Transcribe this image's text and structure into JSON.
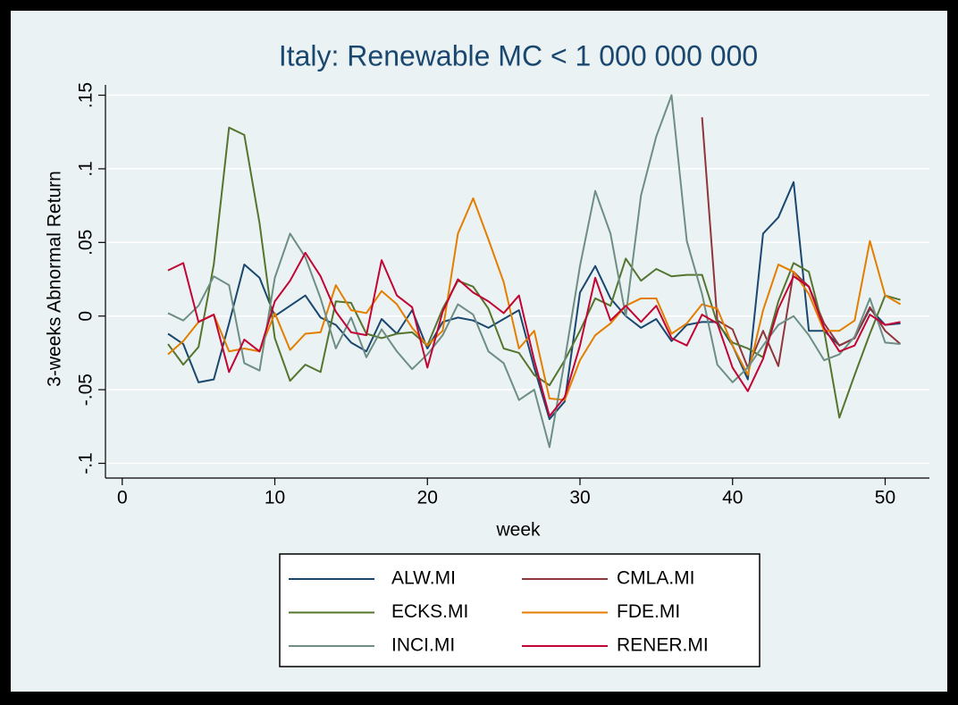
{
  "chart_data": {
    "type": "line",
    "title": "Italy: Renewable MC < 1 000 000 000",
    "x_label": "week",
    "y_label": "3-weeks Abnormal Return",
    "x": [
      3,
      4,
      5,
      6,
      7,
      8,
      9,
      10,
      11,
      12,
      13,
      14,
      15,
      16,
      17,
      18,
      19,
      20,
      21,
      22,
      23,
      24,
      25,
      26,
      27,
      28,
      29,
      30,
      31,
      32,
      33,
      34,
      35,
      36,
      37,
      38,
      39,
      40,
      41,
      42,
      43,
      44,
      45,
      46,
      47,
      48,
      49,
      50,
      51
    ],
    "series": [
      {
        "name": "ALW.MI",
        "color": "#1a476f",
        "values": [
          -0.012,
          -0.019,
          -0.045,
          -0.043,
          -0.005,
          0.035,
          0.026,
          0.0,
          0.007,
          0.014,
          -0.001,
          -0.006,
          -0.018,
          -0.024,
          -0.002,
          -0.012,
          0.004,
          -0.022,
          -0.004,
          -0.001,
          -0.003,
          -0.008,
          -0.002,
          0.004,
          -0.035,
          -0.07,
          -0.058,
          0.016,
          0.034,
          0.012,
          0.0,
          -0.008,
          -0.002,
          -0.017,
          -0.006,
          -0.004,
          -0.004,
          -0.02,
          -0.043,
          0.056,
          0.067,
          0.091,
          -0.01,
          -0.01,
          -0.02,
          -0.015,
          0.005,
          -0.006,
          -0.005
        ]
      },
      {
        "name": "CMLA.MI",
        "color": "#90353b",
        "values": [
          null,
          null,
          null,
          null,
          null,
          null,
          null,
          null,
          null,
          null,
          null,
          null,
          null,
          null,
          null,
          null,
          null,
          null,
          null,
          null,
          null,
          null,
          null,
          null,
          null,
          null,
          null,
          null,
          null,
          null,
          null,
          null,
          null,
          null,
          null,
          0.135,
          -0.003,
          -0.009,
          -0.035,
          -0.01,
          -0.034,
          0.03,
          0.02,
          -0.005,
          -0.02,
          -0.015,
          0.006,
          -0.01,
          -0.019
        ]
      },
      {
        "name": "ECKS.MI",
        "color": "#55752f",
        "values": [
          -0.019,
          -0.033,
          -0.021,
          0.035,
          0.128,
          0.123,
          0.063,
          -0.015,
          -0.044,
          -0.033,
          -0.038,
          0.01,
          0.009,
          -0.012,
          -0.015,
          -0.012,
          -0.011,
          -0.02,
          0.005,
          0.024,
          0.02,
          0.005,
          -0.022,
          -0.025,
          -0.04,
          -0.047,
          -0.03,
          -0.01,
          0.012,
          0.007,
          0.039,
          0.024,
          0.032,
          0.027,
          0.028,
          0.028,
          -0.005,
          -0.018,
          -0.022,
          -0.028,
          0.01,
          0.036,
          0.03,
          -0.01,
          -0.069,
          -0.04,
          -0.012,
          0.014,
          0.011
        ]
      },
      {
        "name": "FDE.MI",
        "color": "#e37e00",
        "values": [
          -0.026,
          -0.017,
          -0.004,
          0.001,
          -0.024,
          -0.022,
          -0.024,
          0.002,
          -0.023,
          -0.012,
          -0.011,
          0.021,
          0.004,
          0.002,
          0.017,
          0.008,
          -0.008,
          -0.02,
          -0.01,
          0.056,
          0.08,
          0.052,
          0.023,
          -0.022,
          -0.01,
          -0.056,
          -0.057,
          -0.03,
          -0.013,
          -0.005,
          0.007,
          0.012,
          0.012,
          -0.012,
          -0.005,
          0.008,
          0.005,
          -0.02,
          -0.04,
          0.004,
          0.035,
          0.03,
          0.015,
          -0.01,
          -0.01,
          -0.003,
          0.051,
          0.014,
          0.008
        ]
      },
      {
        "name": "INCI.MI",
        "color": "#6e8e84",
        "values": [
          0.002,
          -0.003,
          0.007,
          0.027,
          0.021,
          -0.032,
          -0.037,
          0.026,
          0.056,
          0.04,
          0.012,
          -0.022,
          -0.001,
          -0.028,
          -0.009,
          -0.024,
          -0.036,
          -0.026,
          -0.013,
          0.008,
          0.001,
          -0.024,
          -0.032,
          -0.057,
          -0.05,
          -0.089,
          -0.03,
          0.034,
          0.085,
          0.056,
          0.0,
          0.082,
          0.122,
          0.15,
          0.051,
          0.015,
          -0.033,
          -0.045,
          -0.035,
          -0.02,
          -0.006,
          0.0,
          -0.013,
          -0.03,
          -0.026,
          -0.014,
          0.012,
          -0.018,
          -0.019
        ]
      },
      {
        "name": "RENER.MI",
        "color": "#c10534",
        "values": [
          0.031,
          0.036,
          -0.004,
          0.001,
          -0.038,
          -0.016,
          -0.024,
          0.01,
          0.024,
          0.043,
          0.027,
          0.003,
          -0.011,
          -0.013,
          0.038,
          0.014,
          0.006,
          -0.035,
          0.003,
          0.025,
          0.016,
          0.01,
          0.002,
          0.014,
          -0.03,
          -0.068,
          -0.055,
          -0.02,
          0.026,
          -0.003,
          0.007,
          -0.004,
          0.007,
          -0.015,
          -0.02,
          0.001,
          -0.005,
          -0.035,
          -0.051,
          -0.029,
          0.005,
          0.027,
          0.02,
          -0.008,
          -0.024,
          -0.02,
          0.001,
          -0.006,
          -0.004
        ]
      }
    ],
    "xlim": [
      -1.1,
      52.9
    ],
    "ylim": [
      -0.11,
      0.157
    ],
    "xticks": [
      0,
      10,
      20,
      30,
      40,
      50
    ],
    "yticks": [
      {
        "value": -0.1,
        "label": "-.1"
      },
      {
        "value": -0.05,
        "label": "-.05"
      },
      0,
      {
        "value": 0.05,
        "label": ".05"
      },
      {
        "value": 0.1,
        "label": ".1"
      },
      {
        "value": 0.15,
        "label": ".15"
      }
    ],
    "grid": true
  }
}
